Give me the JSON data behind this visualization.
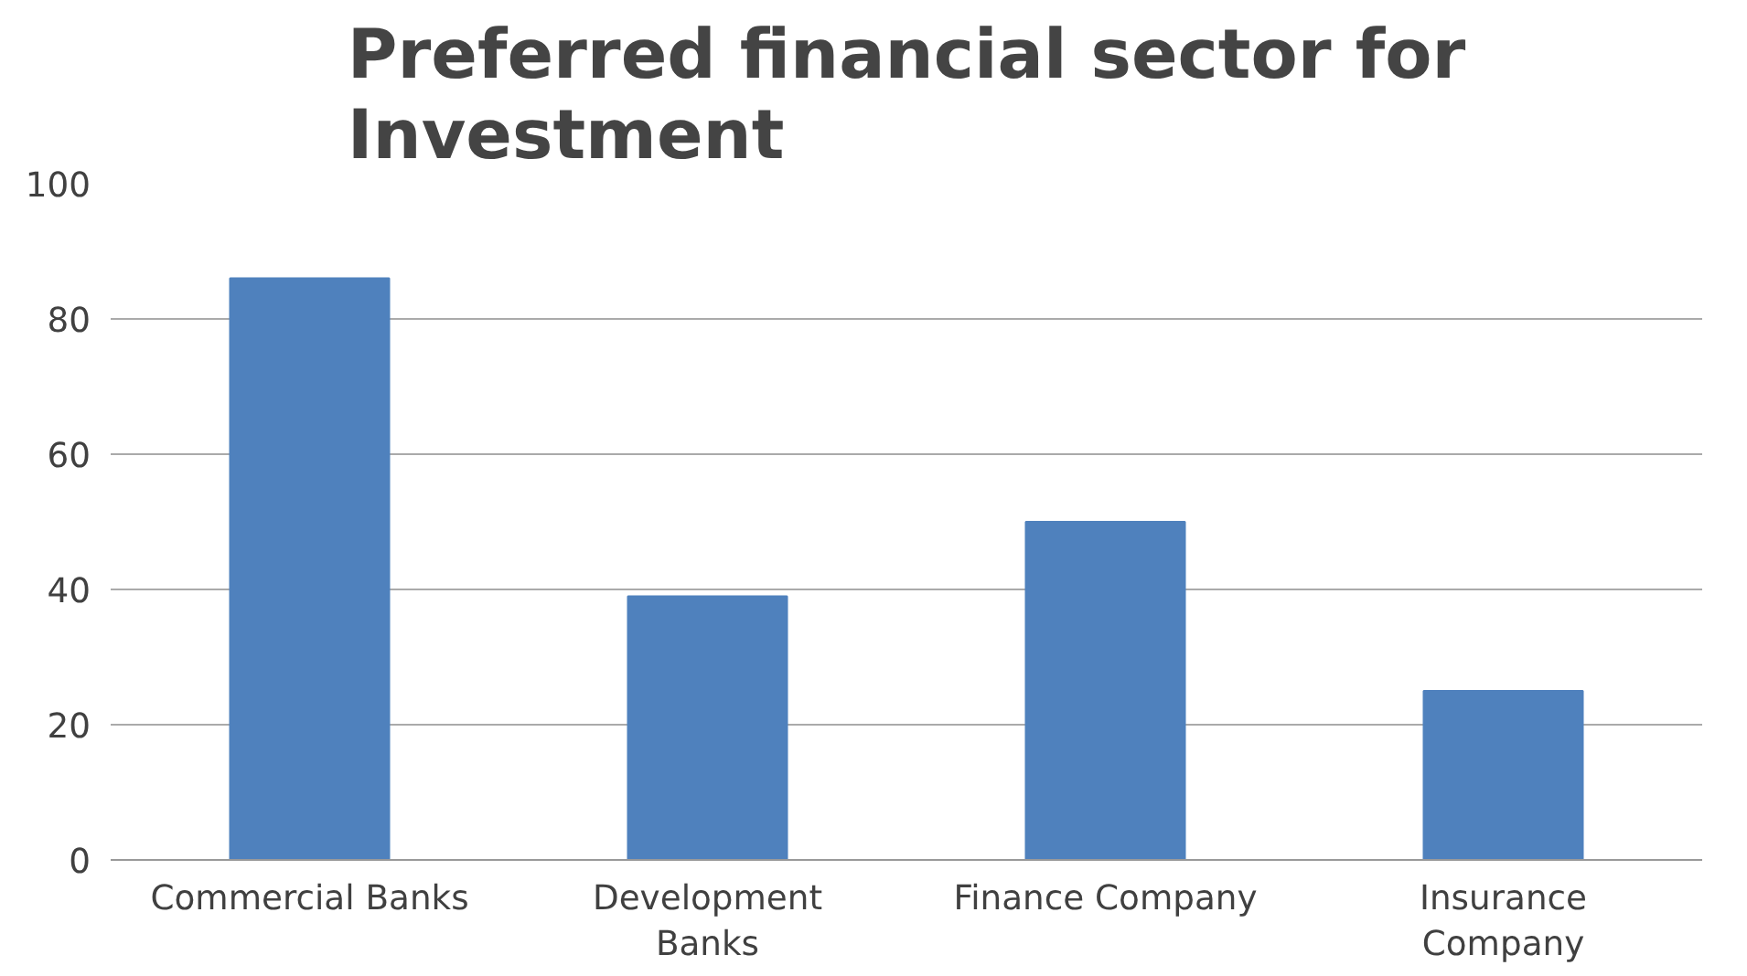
{
  "chart_data": {
    "type": "bar",
    "title": "Preferred financial sector for Investment",
    "categories": [
      "Commercial Banks",
      "Development Banks",
      "Finance Company",
      "Insurance Company"
    ],
    "values": [
      86,
      39,
      50,
      25
    ],
    "color": "#4f81bd",
    "ylim": [
      0,
      100
    ],
    "yticks": [
      0,
      20,
      40,
      60,
      80,
      100
    ],
    "grid": "y"
  }
}
